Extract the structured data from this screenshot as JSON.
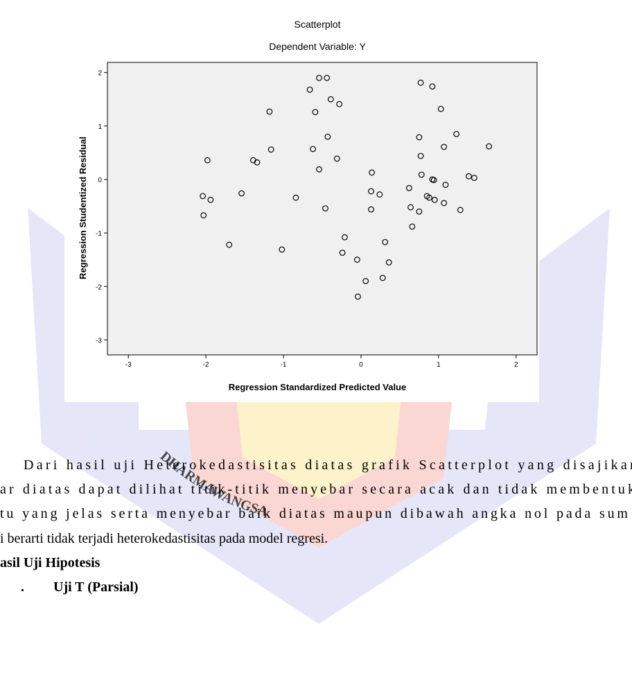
{
  "chart_data": {
    "type": "scatter",
    "title": "Scatterplot",
    "subtitle": "Dependent Variable: Y",
    "x_label": "Regression Standardized Predicted Value",
    "y_label": "Regression Studentized Residual",
    "x": [
      -2.04,
      -1.94,
      -2.03,
      -1.98,
      -1.7,
      -1.54,
      -1.18,
      -1.16,
      -1.39,
      -1.34,
      -1.02,
      -0.84,
      -0.66,
      -0.54,
      -0.44,
      -0.39,
      -0.28,
      -0.59,
      -0.62,
      -0.43,
      -0.54,
      -0.31,
      -0.46,
      -0.21,
      -0.24,
      -0.05,
      0.06,
      -0.04,
      0.14,
      0.13,
      0.24,
      0.13,
      0.31,
      0.36,
      0.28,
      0.77,
      0.92,
      1.03,
      0.75,
      1.23,
      1.07,
      0.77,
      0.78,
      0.62,
      0.92,
      0.94,
      1.09,
      0.85,
      0.88,
      0.95,
      1.07,
      0.64,
      0.75,
      1.28,
      0.66,
      1.39,
      1.46,
      1.65
    ],
    "values": [
      -0.31,
      -0.38,
      -0.67,
      0.36,
      -1.22,
      -0.26,
      1.27,
      0.56,
      0.36,
      0.32,
      -1.31,
      -0.34,
      1.68,
      1.9,
      1.9,
      1.5,
      1.41,
      1.26,
      0.57,
      0.8,
      0.19,
      0.39,
      -0.54,
      -1.08,
      -1.37,
      -1.5,
      -1.9,
      -2.19,
      0.13,
      -0.22,
      -0.28,
      -0.56,
      -1.17,
      -1.55,
      -1.84,
      1.81,
      1.74,
      1.32,
      0.79,
      0.85,
      0.61,
      0.44,
      0.09,
      -0.16,
      0.0,
      -0.01,
      -0.1,
      -0.31,
      -0.34,
      -0.38,
      -0.44,
      -0.52,
      -0.6,
      -0.57,
      -0.88,
      0.06,
      0.03,
      0.62
    ],
    "color": "#000000",
    "xlim": [
      -3.27,
      2.27
    ],
    "ylim": [
      -3.28,
      2.19
    ],
    "xticks": [
      -3,
      -2,
      -1,
      0,
      1,
      2
    ],
    "yticks": [
      -3,
      -2,
      -1,
      0,
      1,
      2
    ]
  },
  "document": {
    "paragraph": [
      "Dari hasil uji Heterokedastisitas diatas grafik Scatterplot yang disajikan",
      "ar diatas dapat dilihat titik-titik menyebar secara acak dan tidak membentuk",
      "tu yang jelas serta menyebar baik diatas maupun dibawah angka nol pada sum",
      "i berarti tidak terjadi heterokedastisitas pada model regresi."
    ],
    "heading": "asil Uji Hipotesis",
    "subheading_number": ".",
    "subheading": "Uji T (Parsial)",
    "watermark": "DHARMAWANGSA"
  }
}
